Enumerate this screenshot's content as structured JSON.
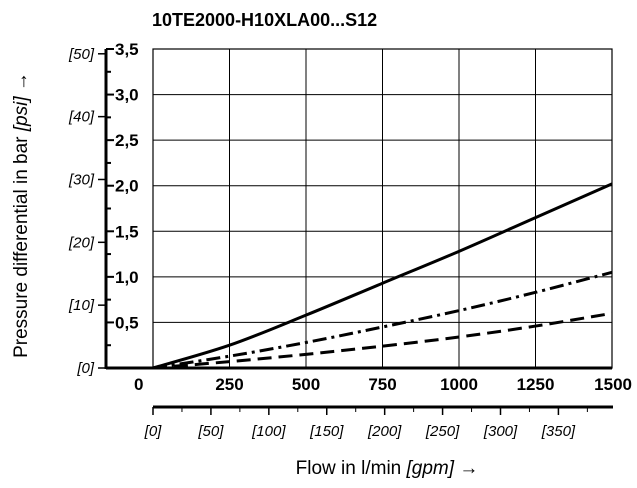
{
  "chart_data": {
    "type": "line",
    "title": "10TE2000-H10XLA00...S12",
    "xlabel": "Flow in l/min",
    "xlabel_unit": "[gpm]",
    "xlabel_arrow": "→",
    "ylabel": "Pressure differential in bar",
    "ylabel_unit": "[psi]",
    "ylabel_arrow": "→",
    "xlim": [
      0,
      1500
    ],
    "ylim": [
      0,
      3.5
    ],
    "x_ticks": [
      "0",
      "250",
      "500",
      "750",
      "1000",
      "1250",
      "1500"
    ],
    "y_ticks": [
      "0,5",
      "1,0",
      "1,5",
      "2,0",
      "2,5",
      "3,0",
      "3,5"
    ],
    "x2_ticks": [
      "[0]",
      "[50]",
      "[100]",
      "[150]",
      "[200]",
      "[250]",
      "[300]",
      "[350]"
    ],
    "y2_ticks": [
      "[0]",
      "[10]",
      "[20]",
      "[30]",
      "[40]",
      "[50]"
    ],
    "grid": true,
    "series": [
      {
        "style": "solid",
        "x": [
          0,
          250,
          500,
          750,
          1000,
          1250,
          1500
        ],
        "y": [
          0,
          0.25,
          0.58,
          0.93,
          1.28,
          1.65,
          2.02
        ]
      },
      {
        "style": "dash-dot",
        "x": [
          0,
          250,
          500,
          750,
          1000,
          1250,
          1500
        ],
        "y": [
          0,
          0.13,
          0.28,
          0.45,
          0.63,
          0.83,
          1.05
        ]
      },
      {
        "style": "dashed",
        "x": [
          0,
          250,
          500,
          750,
          1000,
          1250,
          1500
        ],
        "y": [
          0,
          0.07,
          0.15,
          0.24,
          0.34,
          0.46,
          0.6
        ]
      }
    ]
  }
}
